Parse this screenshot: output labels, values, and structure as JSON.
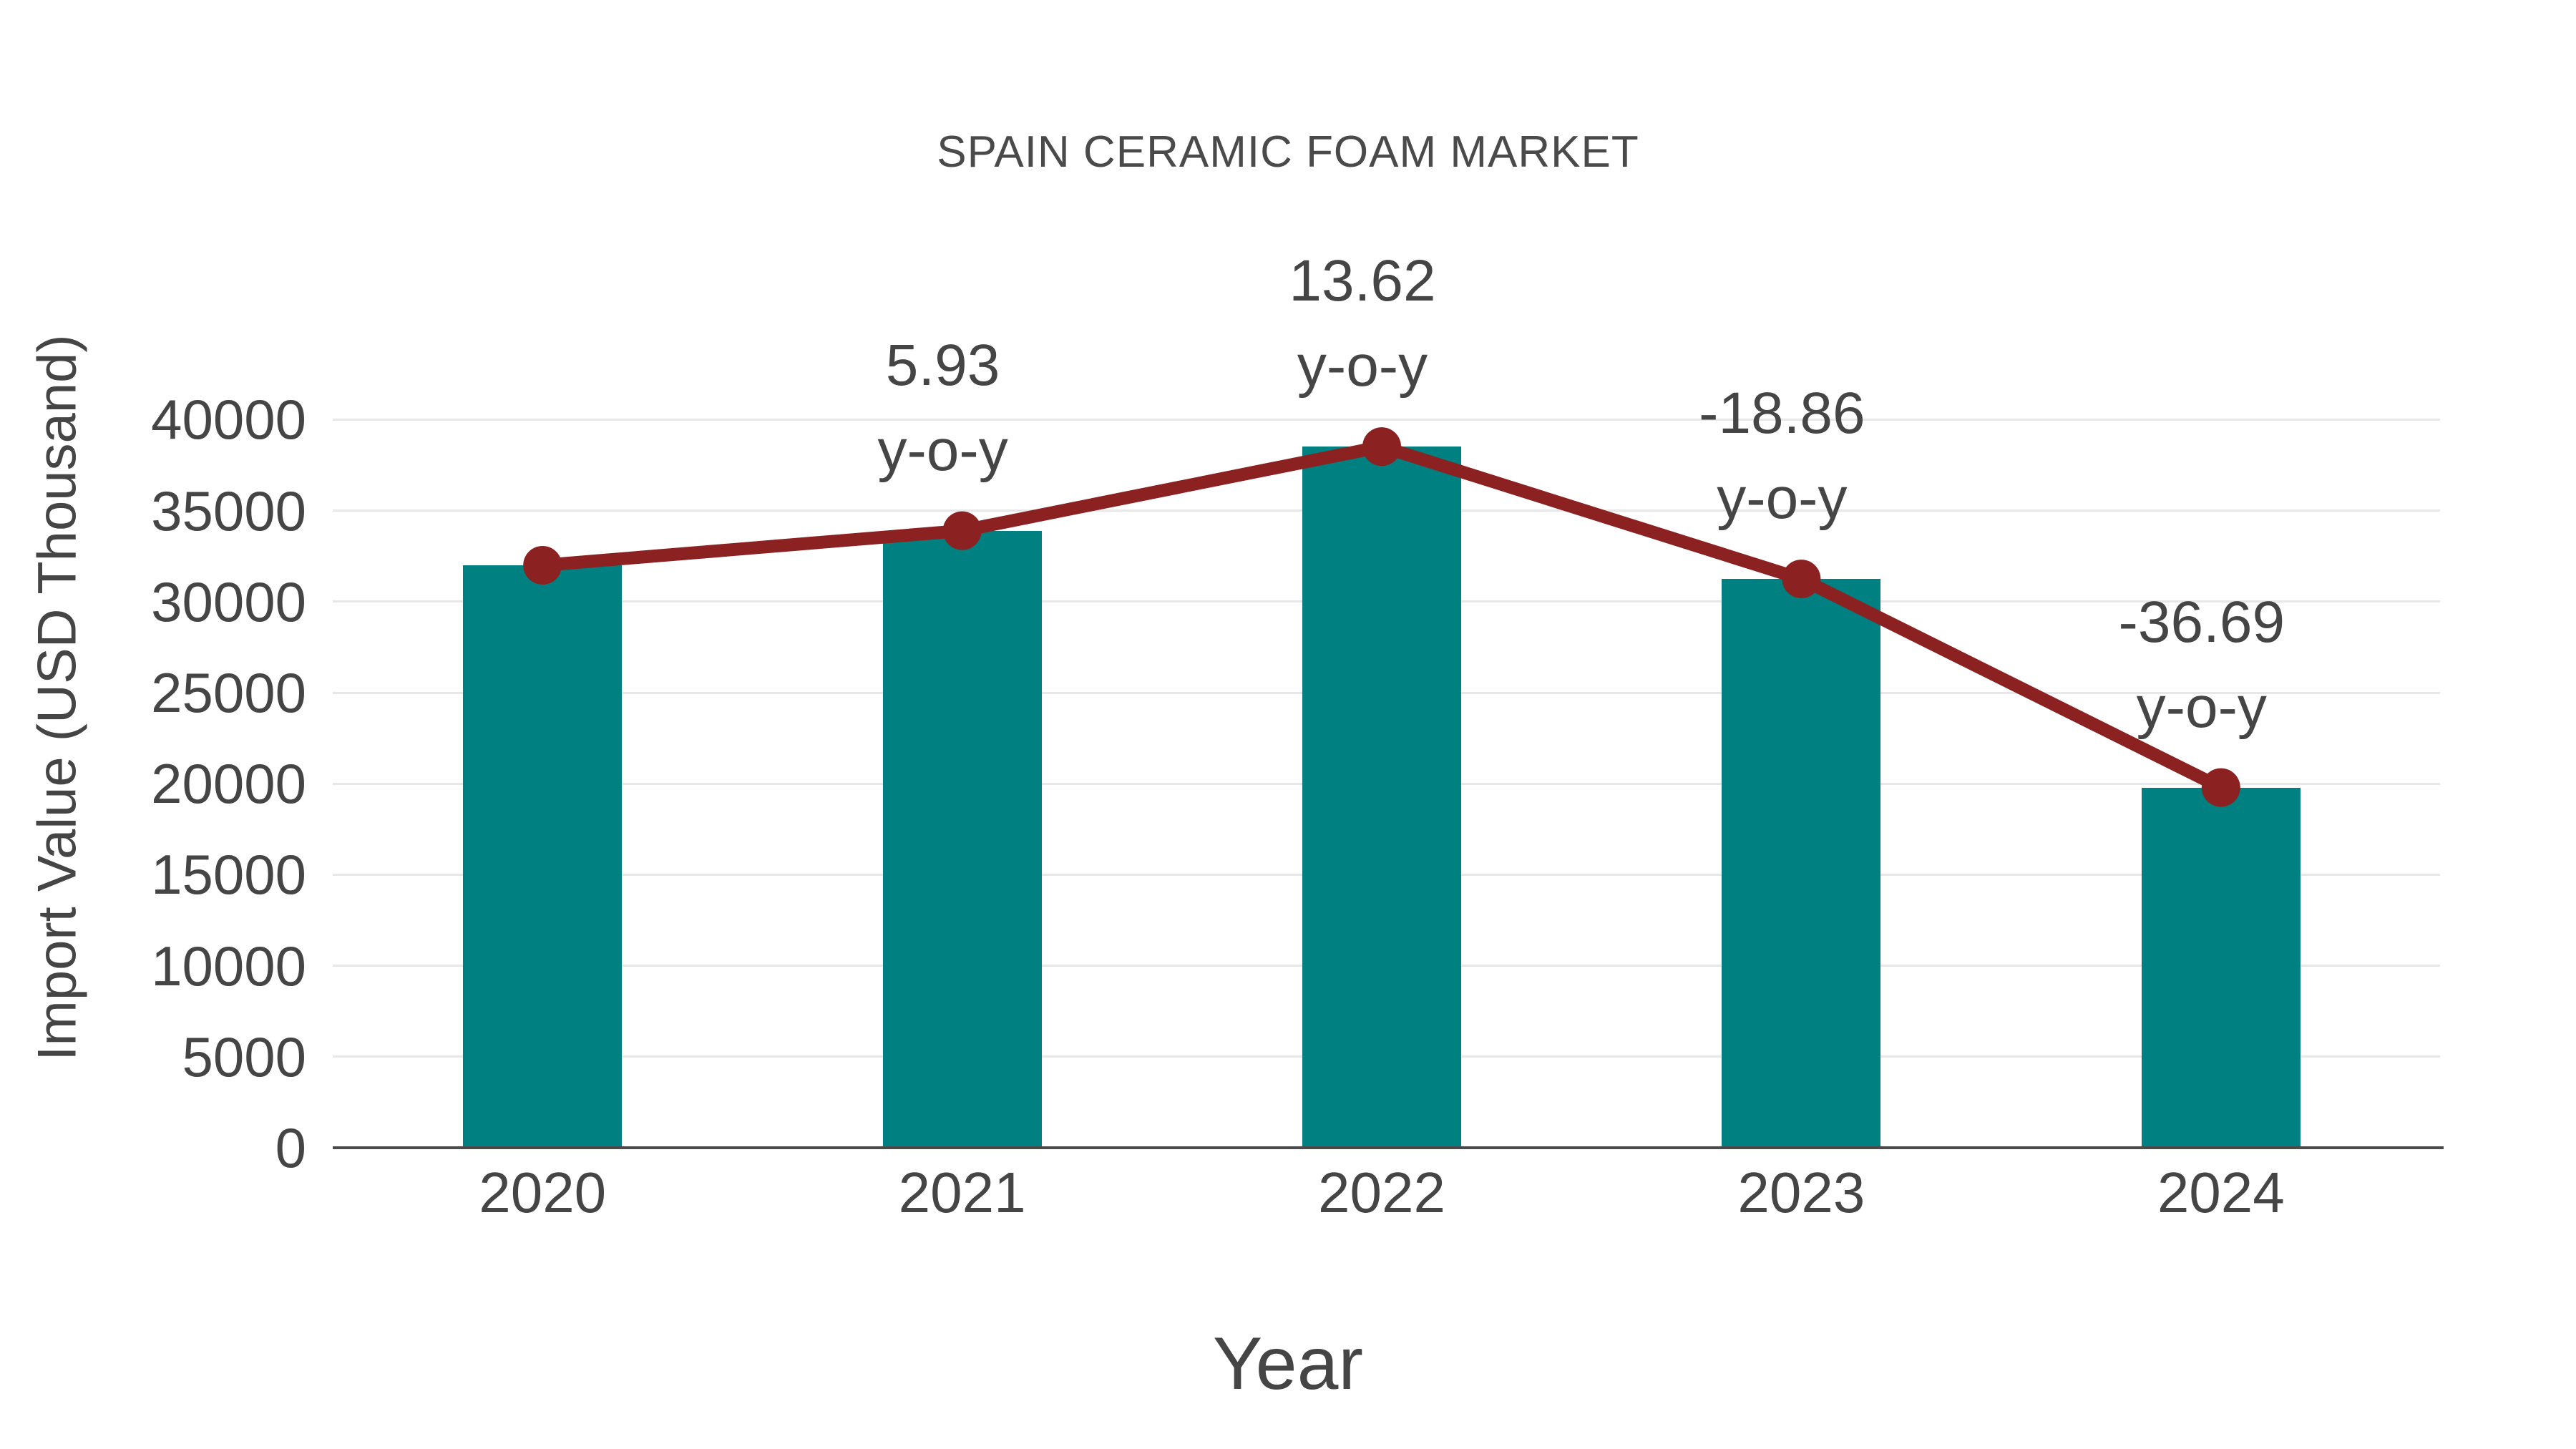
{
  "chart_data": {
    "type": "bar",
    "title": "SPAIN CERAMIC FOAM MARKET",
    "xlabel": "Year",
    "ylabel": "Import Value (USD Thousand)",
    "categories": [
      "2020",
      "2021",
      "2022",
      "2023",
      "2024"
    ],
    "series": [
      {
        "name": "Import Value (USD Thousand)",
        "type": "bar",
        "values": [
          32000,
          33900,
          38520,
          31250,
          19790
        ]
      },
      {
        "name": "y-o-y growth",
        "type": "line",
        "values": [
          32000,
          33900,
          38520,
          31250,
          19790
        ],
        "point_labels": [
          null,
          "5.93",
          "13.62",
          "-18.86",
          "-36.69"
        ],
        "label_suffix": "y-o-y"
      }
    ],
    "ylim": [
      0,
      43400
    ],
    "yticks": [
      0,
      5000,
      10000,
      15000,
      20000,
      25000,
      30000,
      35000,
      40000
    ],
    "grid": true,
    "legend_position": "none",
    "colors": {
      "bar": "#008080",
      "line": "#8b2121",
      "text": "#454545",
      "grid": "#e7e7e7",
      "axis": "#4a4a4a"
    }
  }
}
